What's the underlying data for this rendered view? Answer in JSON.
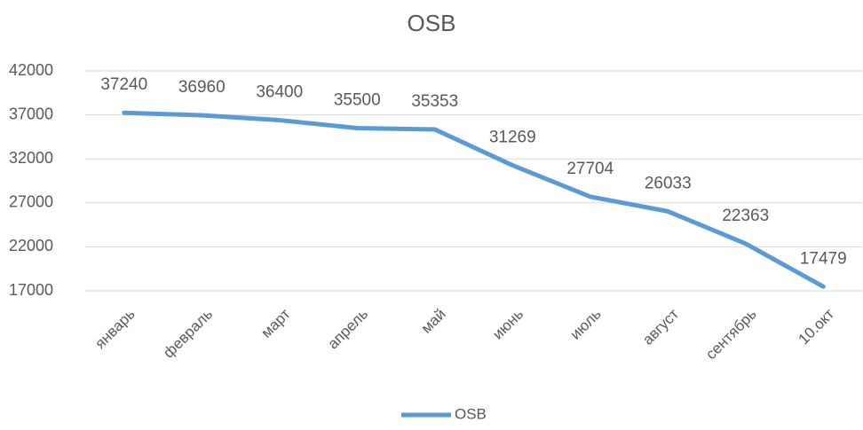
{
  "chart_data": {
    "type": "line",
    "title": "OSB",
    "categories": [
      "январь",
      "февраль",
      "март",
      "апрель",
      "май",
      "июнь",
      "июль",
      "август",
      "сентябрь",
      "10.окт"
    ],
    "series": [
      {
        "name": "OSB",
        "color": "#5b9bd5",
        "values": [
          37240,
          36960,
          36400,
          35500,
          35353,
          31269,
          27704,
          26033,
          22363,
          17479
        ]
      }
    ],
    "ylim": [
      17000,
      42000
    ],
    "yticks": [
      17000,
      22000,
      27000,
      32000,
      37000,
      42000
    ],
    "grid": true,
    "legend": "bottom",
    "data_labels": true
  }
}
